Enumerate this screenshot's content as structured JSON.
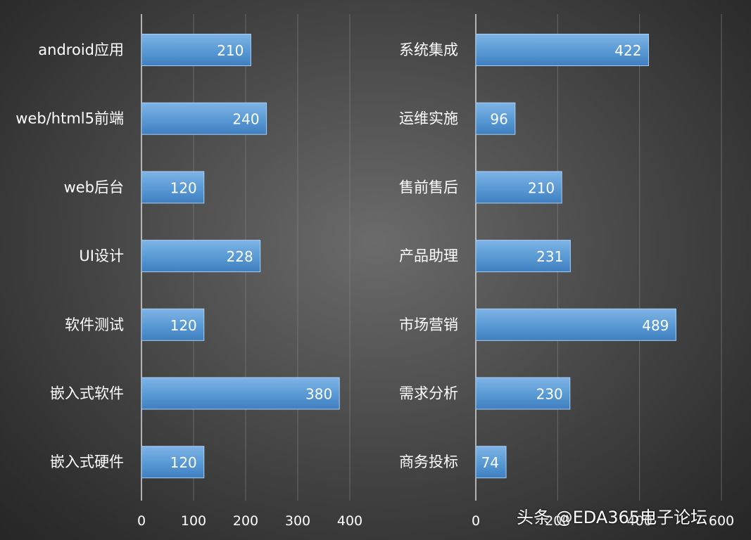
{
  "chart_data": [
    {
      "type": "bar",
      "orientation": "horizontal",
      "categories": [
        "android应用",
        "web/html5前端",
        "web后台",
        "UI设计",
        "软件测试",
        "嵌入式软件",
        "嵌入式硬件"
      ],
      "values": [
        210,
        240,
        120,
        228,
        120,
        380,
        120
      ],
      "x_ticks": [
        "0",
        "100",
        "200",
        "300",
        "400"
      ],
      "xlim": [
        0,
        400
      ],
      "grid": true,
      "data_labels": true
    },
    {
      "type": "bar",
      "orientation": "horizontal",
      "categories": [
        "系统集成",
        "运维实施",
        "售前售后",
        "产品助理",
        "市场营销",
        "需求分析",
        "商务投标"
      ],
      "values": [
        422,
        96,
        210,
        231,
        489,
        230,
        74
      ],
      "x_ticks": [
        "0",
        "200",
        "400",
        "600"
      ],
      "xlim": [
        0,
        600
      ],
      "grid": true,
      "data_labels": true
    }
  ],
  "watermark": "头条 @EDA365电子论坛",
  "colors": {
    "bar": "#5b9bd5",
    "background": "#404040",
    "text": "#ffffff"
  }
}
